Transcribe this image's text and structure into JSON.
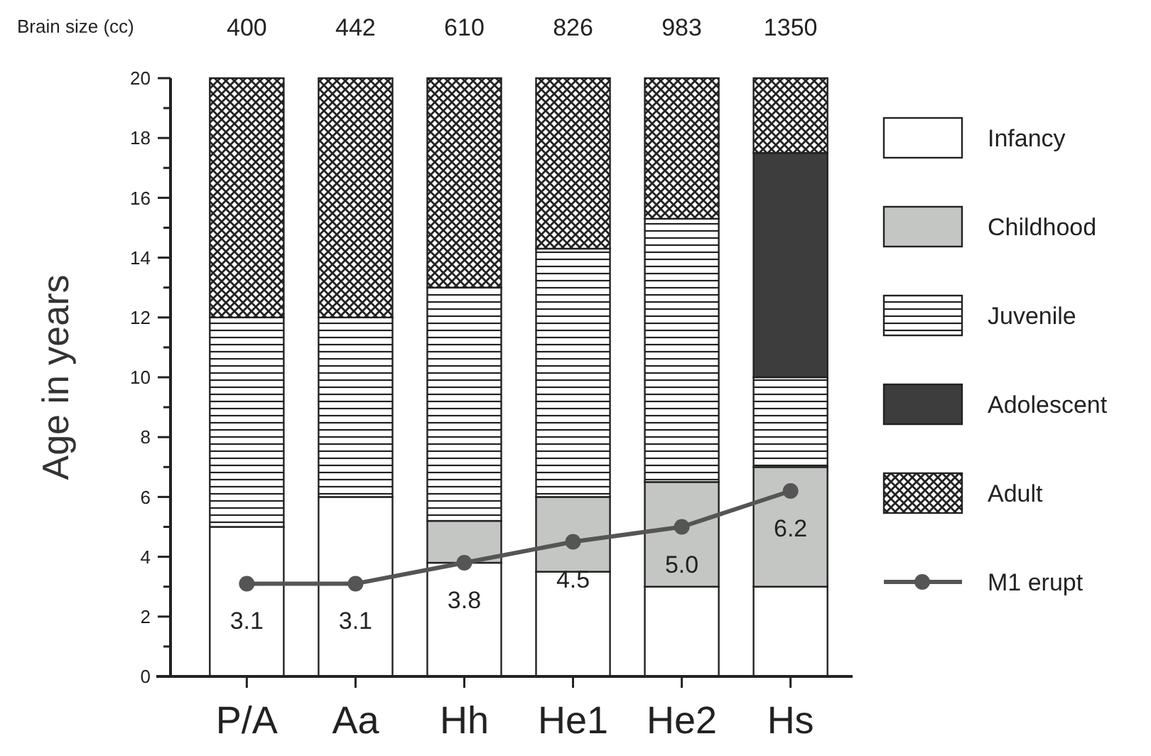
{
  "chart_data": {
    "type": "bar",
    "stacked": true,
    "ylabel": "Age in years",
    "categories": [
      "P/A",
      "Aa",
      "Hh",
      "He1",
      "He2",
      "Hs"
    ],
    "series": [
      {
        "name": "Infancy",
        "color": "#ffffff",
        "values": [
          5,
          6,
          3.8,
          3.5,
          3.0,
          3.0
        ]
      },
      {
        "name": "Childhood",
        "color": "#c4c6c3",
        "values": [
          0,
          0,
          1.4,
          2.5,
          3.5,
          4.0
        ]
      },
      {
        "name": "Juvenile",
        "color": "#222222",
        "values": [
          7,
          6,
          7.8,
          8.3,
          8.8,
          3.0
        ]
      },
      {
        "name": "Adolescent",
        "color": "#3d3d3d",
        "values": [
          0,
          0,
          0,
          0,
          0,
          7.5
        ]
      },
      {
        "name": "Adult",
        "color": "#222222",
        "values": [
          8,
          8,
          7,
          5.7,
          4.7,
          2.5
        ]
      },
      {
        "name": "M1 erupt",
        "type": "line",
        "marker": "circle",
        "color": "#555555",
        "values": [
          3.1,
          3.1,
          3.8,
          4.5,
          5.0,
          6.2
        ],
        "value_labels": [
          "3.1",
          "3.1",
          "3.8",
          "4.5",
          "5.0",
          "6.2"
        ]
      }
    ],
    "ylim": [
      0,
      20
    ],
    "yticks": [
      0,
      {
        "value": 1,
        "label": null
      },
      2,
      {
        "value": 3,
        "label": null
      },
      4,
      {
        "value": 5,
        "label": null
      },
      6,
      {
        "value": 7,
        "label": null
      },
      8,
      {
        "value": 9,
        "label": null
      },
      10,
      {
        "value": 11,
        "label": null
      },
      12,
      {
        "value": 13,
        "label": null
      },
      14,
      {
        "value": 15,
        "label": null
      },
      16,
      {
        "value": 17,
        "label": null
      },
      18,
      {
        "value": 19,
        "label": null
      },
      20
    ],
    "legend": "right",
    "annotations": [
      "Brain size (cc)",
      "400",
      "442",
      "610",
      "826",
      "983",
      "1350"
    ]
  }
}
